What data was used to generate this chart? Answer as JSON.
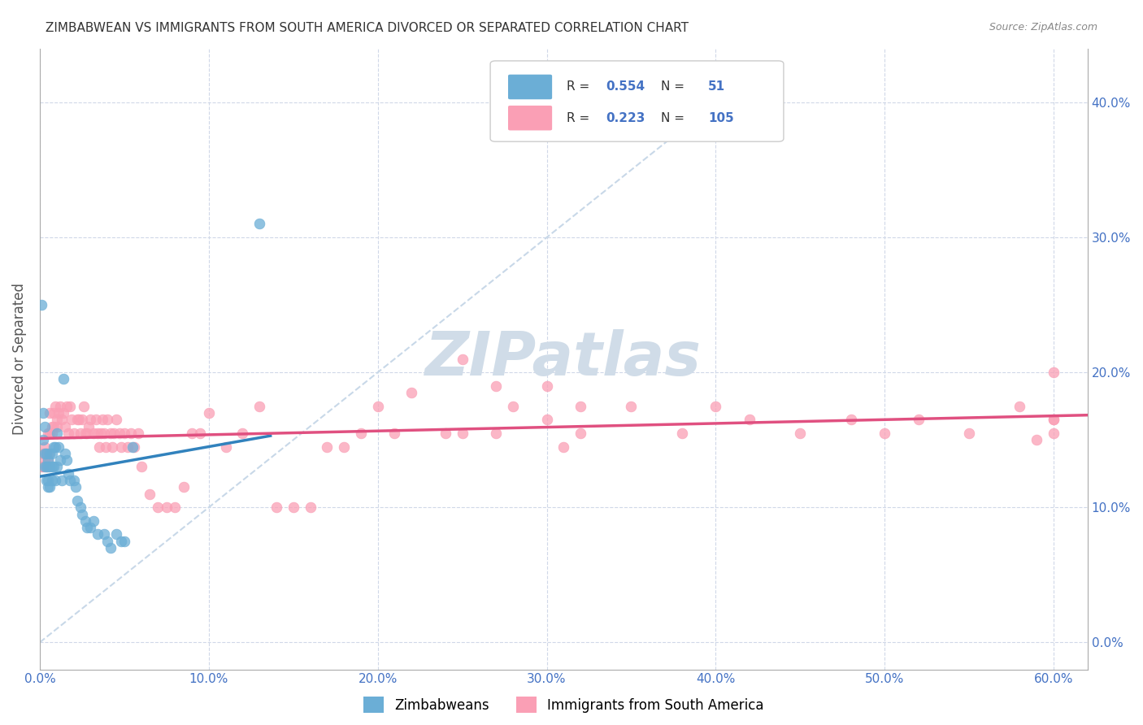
{
  "title": "ZIMBABWEAN VS IMMIGRANTS FROM SOUTH AMERICA DIVORCED OR SEPARATED CORRELATION CHART",
  "source": "Source: ZipAtlas.com",
  "ylabel_label": "Divorced or Separated",
  "xlim": [
    0.0,
    0.62
  ],
  "ylim": [
    -0.02,
    0.44
  ],
  "legend_r1": "0.554",
  "legend_n1": "51",
  "legend_r2": "0.223",
  "legend_n2": "105",
  "color_blue": "#6baed6",
  "color_pink": "#fa9fb5",
  "color_blue_line": "#3182bd",
  "color_pink_line": "#e05080",
  "color_diag": "#c8d8e8",
  "watermark_color": "#d0dce8",
  "blue_x": [
    0.001,
    0.002,
    0.002,
    0.003,
    0.003,
    0.003,
    0.004,
    0.004,
    0.004,
    0.005,
    0.005,
    0.005,
    0.005,
    0.006,
    0.006,
    0.006,
    0.007,
    0.007,
    0.007,
    0.008,
    0.008,
    0.009,
    0.009,
    0.01,
    0.01,
    0.011,
    0.012,
    0.013,
    0.014,
    0.015,
    0.016,
    0.017,
    0.018,
    0.02,
    0.021,
    0.022,
    0.024,
    0.025,
    0.027,
    0.028,
    0.03,
    0.032,
    0.034,
    0.038,
    0.04,
    0.042,
    0.045,
    0.048,
    0.05,
    0.055,
    0.13
  ],
  "blue_y": [
    0.25,
    0.17,
    0.15,
    0.16,
    0.14,
    0.13,
    0.14,
    0.13,
    0.12,
    0.135,
    0.13,
    0.12,
    0.115,
    0.14,
    0.13,
    0.115,
    0.14,
    0.13,
    0.12,
    0.145,
    0.13,
    0.145,
    0.12,
    0.155,
    0.13,
    0.145,
    0.135,
    0.12,
    0.195,
    0.14,
    0.135,
    0.125,
    0.12,
    0.12,
    0.115,
    0.105,
    0.1,
    0.095,
    0.09,
    0.085,
    0.085,
    0.09,
    0.08,
    0.08,
    0.075,
    0.07,
    0.08,
    0.075,
    0.075,
    0.145,
    0.31
  ],
  "pink_x": [
    0.001,
    0.002,
    0.002,
    0.003,
    0.003,
    0.004,
    0.004,
    0.005,
    0.005,
    0.005,
    0.006,
    0.006,
    0.007,
    0.007,
    0.008,
    0.008,
    0.009,
    0.01,
    0.01,
    0.011,
    0.012,
    0.013,
    0.014,
    0.015,
    0.016,
    0.017,
    0.018,
    0.019,
    0.02,
    0.022,
    0.023,
    0.024,
    0.025,
    0.026,
    0.027,
    0.028,
    0.029,
    0.03,
    0.032,
    0.033,
    0.034,
    0.035,
    0.036,
    0.037,
    0.038,
    0.039,
    0.04,
    0.042,
    0.043,
    0.044,
    0.045,
    0.047,
    0.048,
    0.05,
    0.052,
    0.054,
    0.056,
    0.058,
    0.06,
    0.065,
    0.07,
    0.075,
    0.08,
    0.085,
    0.09,
    0.095,
    0.1,
    0.11,
    0.12,
    0.13,
    0.14,
    0.15,
    0.16,
    0.17,
    0.18,
    0.19,
    0.2,
    0.21,
    0.22,
    0.24,
    0.25,
    0.27,
    0.3,
    0.31,
    0.32,
    0.35,
    0.38,
    0.4,
    0.42,
    0.45,
    0.48,
    0.5,
    0.52,
    0.55,
    0.58,
    0.59,
    0.6,
    0.6,
    0.6,
    0.6,
    0.25,
    0.27,
    0.28,
    0.3,
    0.32
  ],
  "pink_y": [
    0.13,
    0.14,
    0.13,
    0.145,
    0.135,
    0.14,
    0.13,
    0.155,
    0.14,
    0.135,
    0.17,
    0.155,
    0.155,
    0.16,
    0.16,
    0.17,
    0.175,
    0.16,
    0.165,
    0.17,
    0.175,
    0.165,
    0.17,
    0.16,
    0.175,
    0.155,
    0.175,
    0.165,
    0.155,
    0.165,
    0.165,
    0.155,
    0.165,
    0.175,
    0.155,
    0.155,
    0.16,
    0.165,
    0.155,
    0.165,
    0.155,
    0.145,
    0.155,
    0.165,
    0.155,
    0.145,
    0.165,
    0.155,
    0.145,
    0.155,
    0.165,
    0.155,
    0.145,
    0.155,
    0.145,
    0.155,
    0.145,
    0.155,
    0.13,
    0.11,
    0.1,
    0.1,
    0.1,
    0.115,
    0.155,
    0.155,
    0.17,
    0.145,
    0.155,
    0.175,
    0.1,
    0.1,
    0.1,
    0.145,
    0.145,
    0.155,
    0.175,
    0.155,
    0.185,
    0.155,
    0.155,
    0.155,
    0.165,
    0.145,
    0.155,
    0.175,
    0.155,
    0.175,
    0.165,
    0.155,
    0.165,
    0.155,
    0.165,
    0.155,
    0.175,
    0.15,
    0.2,
    0.155,
    0.165,
    0.165,
    0.21,
    0.19,
    0.175,
    0.19,
    0.175
  ]
}
